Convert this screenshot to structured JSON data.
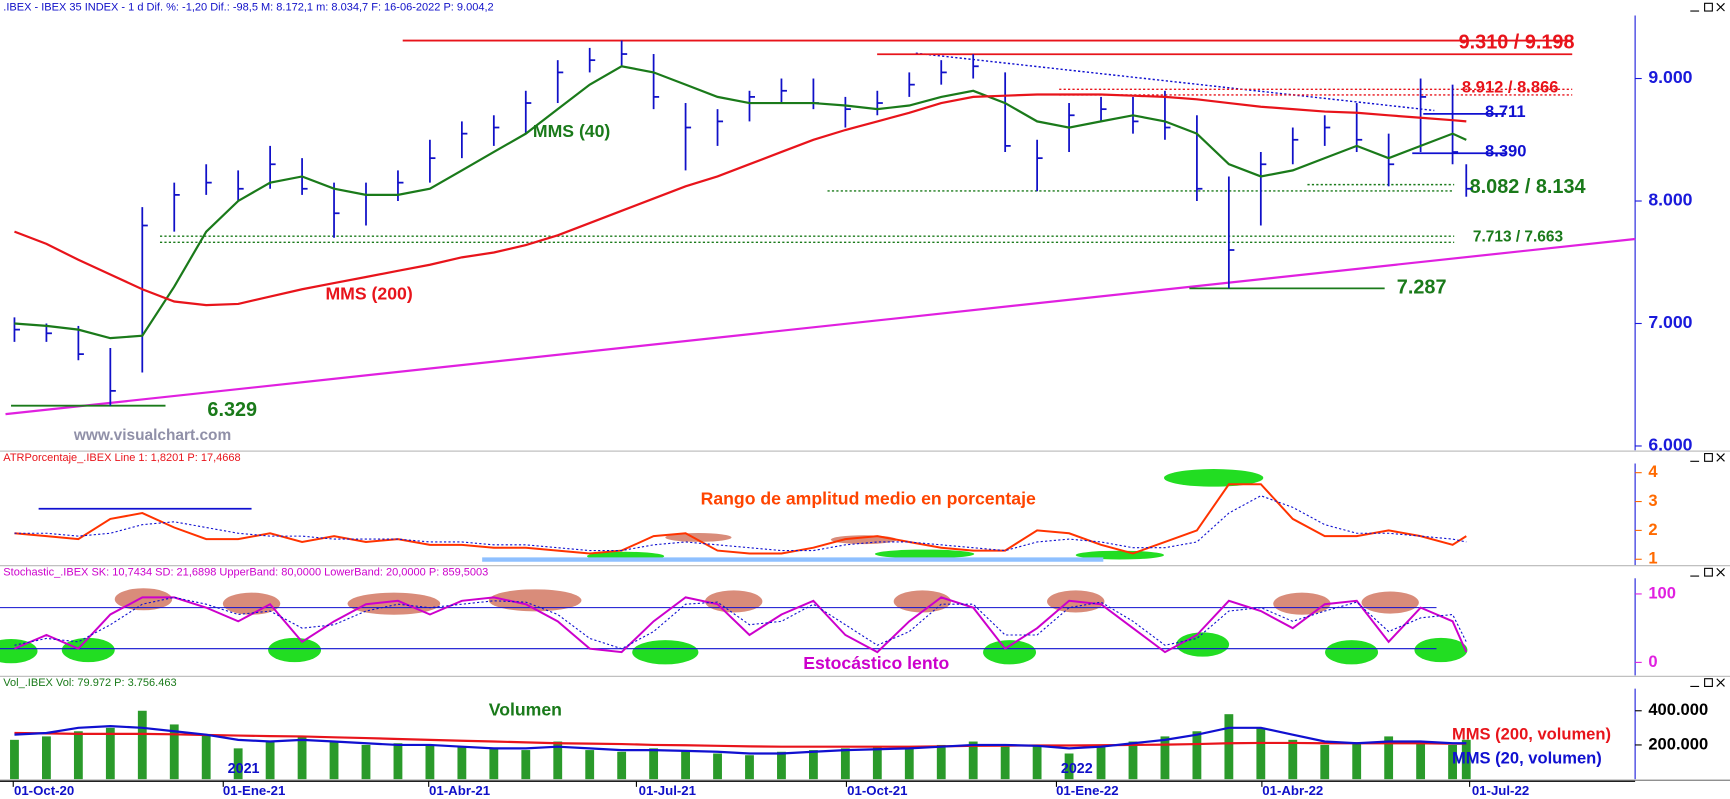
{
  "chart_data": {
    "type": "financial",
    "x": [
      "2020-09-18",
      "2020-10-02",
      "2020-10-16",
      "2020-10-30",
      "2020-11-13",
      "2020-11-27",
      "2020-12-11",
      "2020-12-25",
      "2021-01-08",
      "2021-01-22",
      "2021-02-05",
      "2021-02-19",
      "2021-03-05",
      "2021-03-19",
      "2021-04-02",
      "2021-04-16",
      "2021-04-30",
      "2021-05-14",
      "2021-05-28",
      "2021-06-11",
      "2021-06-25",
      "2021-07-09",
      "2021-07-23",
      "2021-08-06",
      "2021-08-20",
      "2021-09-03",
      "2021-09-17",
      "2021-10-01",
      "2021-10-15",
      "2021-10-29",
      "2021-11-12",
      "2021-11-26",
      "2021-12-10",
      "2021-12-24",
      "2022-01-07",
      "2022-01-21",
      "2022-02-04",
      "2022-02-18",
      "2022-03-04",
      "2022-03-18",
      "2022-04-01",
      "2022-04-15",
      "2022-04-29",
      "2022-05-13",
      "2022-05-27",
      "2022-06-10",
      "2022-06-16"
    ],
    "xticks": [
      {
        "value": "2020-10-01",
        "label": "01-Oct-20"
      },
      {
        "value": "2021-01-01",
        "label": "01-Ene-21"
      },
      {
        "value": "2021-04-01",
        "label": "01-Abr-21"
      },
      {
        "value": "2021-07-01",
        "label": "01-Jul-21"
      },
      {
        "value": "2021-10-01",
        "label": "01-Oct-21"
      },
      {
        "value": "2022-01-01",
        "label": "01-Ene-22"
      },
      {
        "value": "2022-04-01",
        "label": "01-Abr-22"
      },
      {
        "value": "2022-07-01",
        "label": "01-Jul-22"
      }
    ],
    "year_labels": [
      {
        "value": "2021-01-01",
        "label": "2021"
      },
      {
        "value": "2022-01-01",
        "label": "2022"
      }
    ],
    "panels": [
      {
        "type": "ohlc",
        "header": ".IBEX - IBEX 35 INDEX -  1 d  Dif. %: -1,20  Dif.: -98,5  M: 8.172,1  m: 8.034,7  F: 16-06-2022  P: 9.004,2",
        "ylim": [
          5965,
          9515
        ],
        "yticks": [
          {
            "value": 9000,
            "label": "9.000"
          },
          {
            "value": 8000,
            "label": "8.000"
          },
          {
            "value": 7000,
            "label": "7.000"
          },
          {
            "value": 6000,
            "label": "6.000"
          }
        ],
        "color": "#1010c8",
        "high": [
          7050,
          7000,
          6980,
          6800,
          7950,
          8150,
          8300,
          8250,
          8450,
          8350,
          8150,
          8150,
          8250,
          8500,
          8650,
          8700,
          8900,
          9150,
          9250,
          9310,
          9200,
          8800,
          8750,
          8900,
          9000,
          9000,
          8850,
          8900,
          9050,
          9150,
          9198,
          9050,
          8500,
          8800,
          8850,
          8850,
          8900,
          8700,
          8200,
          8400,
          8600,
          8700,
          8800,
          8550,
          9000,
          8950,
          8300
        ],
        "low": [
          6850,
          6850,
          6700,
          6329,
          6600,
          7750,
          8050,
          8000,
          8100,
          8050,
          7700,
          7800,
          8000,
          8150,
          8350,
          8450,
          8550,
          8800,
          9050,
          9100,
          8750,
          8250,
          8450,
          8650,
          8800,
          8750,
          8600,
          8700,
          8850,
          8950,
          9000,
          8400,
          8080,
          8400,
          8650,
          8550,
          8500,
          8000,
          7287,
          7800,
          8300,
          8450,
          8400,
          8120,
          8400,
          8300,
          8035
        ],
        "close": [
          6950,
          6920,
          6750,
          6450,
          7800,
          8050,
          8150,
          8100,
          8300,
          8100,
          7900,
          8050,
          8150,
          8350,
          8550,
          8600,
          8800,
          9050,
          9150,
          9200,
          8850,
          8600,
          8650,
          8850,
          8900,
          8800,
          8750,
          8800,
          8950,
          9050,
          9100,
          8450,
          8350,
          8700,
          8750,
          8650,
          8600,
          8100,
          7600,
          8300,
          8500,
          8600,
          8500,
          8300,
          8850,
          8400,
          8100
        ],
        "series": [
          {
            "name": "MMS (40)",
            "color": "#1a7a1a",
            "values": [
              7000,
              6980,
              6950,
              6880,
              6900,
              7300,
              7750,
              8000,
              8150,
              8200,
              8100,
              8050,
              8050,
              8100,
              8250,
              8400,
              8550,
              8750,
              8950,
              9100,
              9050,
              8950,
              8850,
              8800,
              8800,
              8800,
              8780,
              8750,
              8780,
              8850,
              8900,
              8800,
              8650,
              8600,
              8650,
              8700,
              8650,
              8550,
              8300,
              8200,
              8250,
              8350,
              8450,
              8350,
              8450,
              8550,
              8500
            ]
          },
          {
            "name": "MMS (200)",
            "color": "#e8141b",
            "values": [
              7750,
              7650,
              7520,
              7400,
              7280,
              7180,
              7150,
              7160,
              7220,
              7280,
              7330,
              7380,
              7430,
              7480,
              7540,
              7580,
              7640,
              7720,
              7820,
              7920,
              8020,
              8120,
              8200,
              8300,
              8400,
              8500,
              8580,
              8650,
              8720,
              8800,
              8850,
              8860,
              8870,
              8870,
              8870,
              8860,
              8850,
              8830,
              8800,
              8770,
              8750,
              8730,
              8720,
              8700,
              8680,
              8660,
              8650
            ]
          }
        ],
        "levels": [
          {
            "label": "9.310 / 9.198",
            "values": [
              9310,
              9198
            ],
            "color": "#e8141b",
            "style": "solid"
          },
          {
            "label": "8.912 / 8.866",
            "values": [
              8912,
              8866
            ],
            "color": "#e8141b",
            "style": "dotted"
          },
          {
            "label": "8.711",
            "values": [
              8711
            ],
            "color": "#1010d0",
            "style": "solid"
          },
          {
            "label": "8.390",
            "values": [
              8390
            ],
            "color": "#1010d0",
            "style": "solid"
          },
          {
            "label": "8.082 / 8.134",
            "values": [
              8082,
              8134
            ],
            "color": "#1a7a1a",
            "style": "dotted"
          },
          {
            "label": "7.713 / 7.663",
            "values": [
              7713,
              7663
            ],
            "color": "#1a7a1a",
            "style": "dotted"
          },
          {
            "label": "7.287",
            "values": [
              7287
            ],
            "color": "#1a7a1a",
            "style": "solid"
          },
          {
            "label": "6.329",
            "values": [
              6329
            ],
            "color": "#1a7a1a",
            "style": "solid"
          }
        ],
        "trendlines": [
          {
            "values": [
              6260,
              7690
            ],
            "color": "#e020e0",
            "style": "solid"
          },
          {
            "values": [
              9207,
              8739
            ],
            "color": "#1010d0",
            "style": "dotted"
          }
        ],
        "annotations": [
          "www.visualchart.com"
        ]
      },
      {
        "type": "line",
        "header": "ATRPorcentaje_.IBEX Line 1: 1,8201  P: 17,4668",
        "ylim": [
          0.8,
          4.7
        ],
        "yticks": [
          1,
          2,
          3,
          4
        ],
        "series": [
          {
            "color": "#ff3300",
            "style": "solid",
            "values": [
              1.9,
              1.8,
              1.7,
              2.4,
              2.6,
              2.1,
              1.7,
              1.7,
              1.9,
              1.6,
              1.8,
              1.6,
              1.7,
              1.5,
              1.5,
              1.4,
              1.4,
              1.3,
              1.2,
              1.3,
              1.8,
              1.9,
              1.3,
              1.2,
              1.2,
              1.4,
              1.7,
              1.8,
              1.6,
              1.4,
              1.3,
              1.3,
              2.0,
              1.9,
              1.5,
              1.2,
              1.6,
              2.0,
              3.6,
              3.6,
              2.4,
              1.8,
              1.8,
              2.0,
              1.8,
              1.5,
              1.8
            ]
          },
          {
            "color": "#1010d0",
            "style": "dotted",
            "values": [
              1.9,
              1.9,
              1.8,
              1.9,
              2.2,
              2.3,
              2.1,
              1.9,
              1.8,
              1.8,
              1.7,
              1.7,
              1.7,
              1.6,
              1.6,
              1.5,
              1.5,
              1.4,
              1.3,
              1.3,
              1.5,
              1.6,
              1.5,
              1.4,
              1.3,
              1.3,
              1.5,
              1.6,
              1.6,
              1.5,
              1.4,
              1.3,
              1.6,
              1.7,
              1.6,
              1.4,
              1.4,
              1.6,
              2.6,
              3.2,
              2.8,
              2.2,
              1.9,
              1.9,
              1.8,
              1.7,
              1.6
            ]
          }
        ],
        "annotations": [
          "Rango de amplitud medio en porcentaje"
        ]
      },
      {
        "type": "line",
        "header": "Stochastic_.IBEX SK: 10,7434  SD: 21,6898  UpperBand: 80,0000  LowerBand: 20,0000  P: 859,5003",
        "ylim": [
          -19,
          139
        ],
        "yticks": [
          0,
          100
        ],
        "bands": [
          80,
          20
        ],
        "series": [
          {
            "color": "#cc00cc",
            "style": "solid",
            "values": [
              20,
              40,
              20,
              70,
              95,
              95,
              80,
              60,
              85,
              30,
              60,
              85,
              90,
              70,
              90,
              95,
              85,
              60,
              20,
              15,
              60,
              95,
              85,
              40,
              70,
              90,
              40,
              15,
              60,
              95,
              80,
              20,
              50,
              90,
              85,
              50,
              15,
              40,
              90,
              75,
              50,
              85,
              90,
              30,
              80,
              60,
              15
            ]
          },
          {
            "color": "#1010d0",
            "style": "dotted",
            "values": [
              25,
              35,
              30,
              55,
              85,
              95,
              85,
              70,
              75,
              50,
              55,
              75,
              85,
              80,
              85,
              90,
              88,
              70,
              35,
              20,
              45,
              85,
              88,
              55,
              60,
              85,
              55,
              25,
              45,
              85,
              85,
              40,
              40,
              80,
              88,
              60,
              25,
              35,
              75,
              80,
              60,
              75,
              88,
              45,
              65,
              70,
              30
            ]
          }
        ],
        "annotations": [
          "Estocástico lento"
        ]
      },
      {
        "type": "volume",
        "header": "Vol_.IBEX Vol: 79.972  P: 3.756.463",
        "ylim": [
          0,
          594000
        ],
        "yticks": [
          {
            "value": 200000,
            "label": "200.000"
          },
          {
            "value": 400000,
            "label": "400.000"
          }
        ],
        "color": "#2a9a2a",
        "values": [
          230000,
          250000,
          280000,
          300000,
          400000,
          320000,
          260000,
          180000,
          220000,
          250000,
          220000,
          200000,
          210000,
          200000,
          190000,
          180000,
          170000,
          220000,
          170000,
          160000,
          180000,
          170000,
          150000,
          140000,
          160000,
          170000,
          180000,
          190000,
          180000,
          200000,
          220000,
          190000,
          200000,
          150000,
          200000,
          220000,
          250000,
          280000,
          380000,
          300000,
          230000,
          200000,
          210000,
          250000,
          220000,
          200000,
          230000
        ],
        "series": [
          {
            "name": "MMS (200, volumen)",
            "color": "#e8141b",
            "values": [
              270000,
              268000,
              265000,
              265000,
              265000,
              262000,
              258000,
              255000,
              252000,
              250000,
              245000,
              240000,
              235000,
              230000,
              225000,
              220000,
              215000,
              210000,
              208000,
              205000,
              200000,
              198000,
              195000,
              192000,
              190000,
              190000,
              190000,
              190000,
              190000,
              192000,
              195000,
              196000,
              197000,
              197000,
              198000,
              200000,
              202000,
              205000,
              210000,
              212000,
              212000,
              210000,
              210000,
              210000,
              210000,
              208000,
              208000
            ]
          },
          {
            "name": "MMS (20, volumen)",
            "color": "#1010d0",
            "values": [
              260000,
              270000,
              300000,
              310000,
              300000,
              280000,
              260000,
              230000,
              220000,
              230000,
              220000,
              210000,
              200000,
              200000,
              190000,
              180000,
              180000,
              190000,
              180000,
              170000,
              170000,
              165000,
              160000,
              150000,
              150000,
              160000,
              170000,
              175000,
              180000,
              190000,
              200000,
              200000,
              195000,
              180000,
              190000,
              210000,
              230000,
              260000,
              300000,
              300000,
              260000,
              220000,
              210000,
              220000,
              220000,
              210000,
              210000
            ]
          }
        ],
        "annotations": [
          "Volumen"
        ]
      }
    ]
  }
}
